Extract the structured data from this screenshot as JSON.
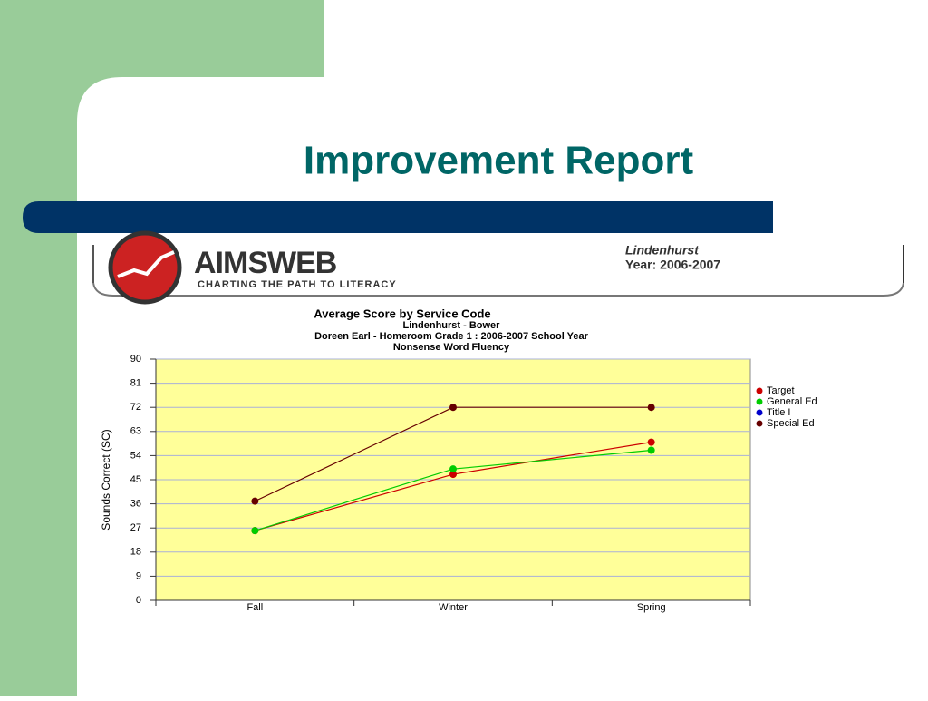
{
  "slide": {
    "title": "Improvement Report"
  },
  "header": {
    "logo": "AIMSWEB",
    "tagline": "CHARTING THE PATH TO LITERACY",
    "district": "Lindenhurst",
    "year": "Year: 2006-2007"
  },
  "chart_data": {
    "type": "line",
    "title": "Average Score by Service Code",
    "subtitle": [
      "Lindenhurst - Bower",
      "Doreen Earl - Homeroom  Grade 1 : 2006-2007 School Year",
      "Nonsense Word Fluency"
    ],
    "y_label": "Sounds Correct (SC)",
    "categories": [
      "Fall",
      "Winter",
      "Spring"
    ],
    "series": [
      {
        "name": "Target",
        "color": "#cc0000",
        "values": [
          26,
          47,
          59
        ]
      },
      {
        "name": "General Ed",
        "color": "#00cc00",
        "values": [
          26,
          49,
          56
        ]
      },
      {
        "name": "Title I",
        "color": "#0000cc",
        "values": [
          null,
          null,
          null
        ]
      },
      {
        "name": "Special Ed",
        "color": "#660000",
        "values": [
          37,
          72,
          72
        ]
      }
    ],
    "ylim": [
      0,
      90
    ],
    "yticks": [
      0,
      9,
      18,
      27,
      36,
      45,
      54,
      63,
      72,
      81,
      90
    ],
    "grid": true,
    "legend": "right",
    "plot_color": "#ffff99"
  }
}
